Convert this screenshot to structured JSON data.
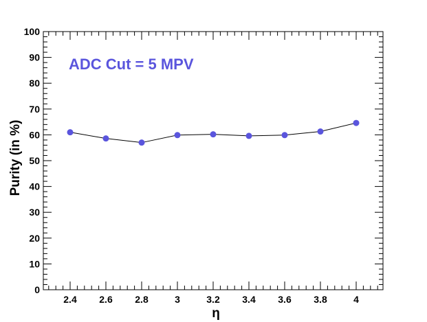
{
  "chart_data": {
    "type": "line",
    "title": "",
    "annotation": "ADC Cut = 5 MPV",
    "xlabel": "η",
    "ylabel": "Purity (in %)",
    "xlim": [
      2.25,
      4.15
    ],
    "ylim": [
      0,
      100
    ],
    "x_ticks": [
      "2.4",
      "2.6",
      "2.8",
      "3",
      "3.2",
      "3.4",
      "3.6",
      "3.8",
      "4"
    ],
    "y_ticks": [
      "0",
      "10",
      "20",
      "30",
      "40",
      "50",
      "60",
      "70",
      "80",
      "90",
      "100"
    ],
    "grid": false,
    "series": [
      {
        "x": [
          2.4,
          2.6,
          2.8,
          3.0,
          3.2,
          3.4,
          3.6,
          3.8,
          4.0
        ],
        "y": [
          61.0,
          58.6,
          57.0,
          59.9,
          60.2,
          59.6,
          59.9,
          61.3,
          64.6
        ]
      }
    ],
    "colors": {
      "marker": "#5a55dd",
      "line": "#000000",
      "annotation": "#5a55dd"
    }
  }
}
